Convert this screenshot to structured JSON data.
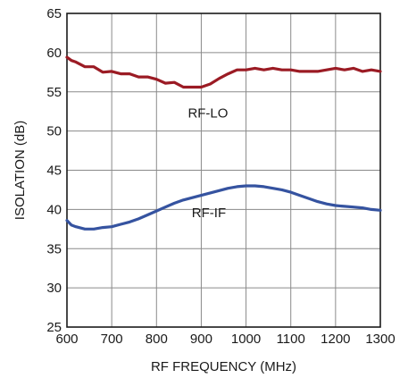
{
  "chart_data": {
    "type": "line",
    "xlabel": "RF FREQUENCY (MHz)",
    "ylabel": "ISOLATION (dB)",
    "xlim": [
      600,
      1300
    ],
    "ylim": [
      25,
      65
    ],
    "xticks": [
      "600",
      "700",
      "800",
      "900",
      "1000",
      "1100",
      "1200",
      "1300"
    ],
    "yticks": [
      "25",
      "30",
      "35",
      "40",
      "45",
      "50",
      "55",
      "60",
      "65"
    ],
    "grid": true,
    "series": [
      {
        "name": "RF-LO",
        "color": "#9b1b24",
        "x": [
          600,
          610,
          620,
          640,
          660,
          680,
          700,
          720,
          740,
          760,
          780,
          800,
          820,
          840,
          860,
          880,
          900,
          920,
          940,
          960,
          980,
          1000,
          1020,
          1040,
          1060,
          1080,
          1100,
          1120,
          1140,
          1160,
          1180,
          1200,
          1220,
          1240,
          1260,
          1280,
          1300
        ],
        "values": [
          59.4,
          59.0,
          58.8,
          58.2,
          58.2,
          57.5,
          57.6,
          57.3,
          57.3,
          56.9,
          56.9,
          56.6,
          56.1,
          56.2,
          55.6,
          55.6,
          55.6,
          56.0,
          56.7,
          57.3,
          57.8,
          57.8,
          58.0,
          57.8,
          58.0,
          57.8,
          57.8,
          57.6,
          57.6,
          57.6,
          57.8,
          58.0,
          57.8,
          58.0,
          57.6,
          57.8,
          57.6
        ]
      },
      {
        "name": "RF-IF",
        "color": "#3553a0",
        "x": [
          600,
          610,
          620,
          640,
          660,
          680,
          700,
          720,
          740,
          760,
          780,
          800,
          820,
          840,
          860,
          880,
          900,
          920,
          940,
          960,
          980,
          1000,
          1020,
          1040,
          1060,
          1080,
          1100,
          1120,
          1140,
          1160,
          1180,
          1200,
          1220,
          1240,
          1260,
          1280,
          1300
        ],
        "values": [
          38.6,
          38.0,
          37.8,
          37.5,
          37.5,
          37.7,
          37.8,
          38.1,
          38.4,
          38.8,
          39.3,
          39.8,
          40.3,
          40.8,
          41.2,
          41.5,
          41.8,
          42.1,
          42.4,
          42.7,
          42.9,
          43.0,
          43.0,
          42.9,
          42.7,
          42.5,
          42.2,
          41.8,
          41.4,
          41.0,
          40.7,
          40.5,
          40.4,
          40.3,
          40.2,
          40.0,
          39.9
        ]
      }
    ]
  }
}
